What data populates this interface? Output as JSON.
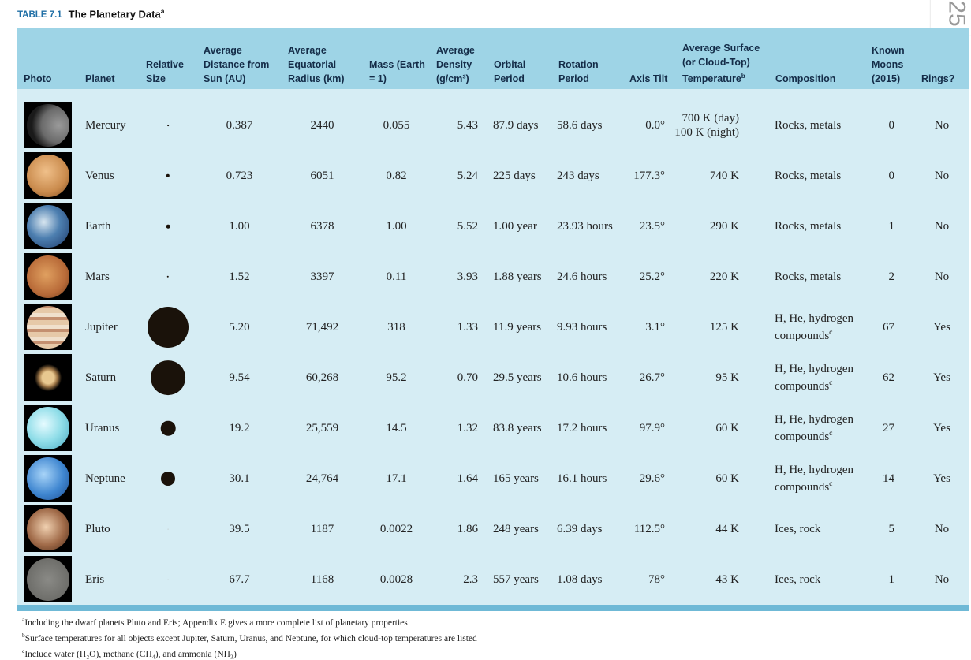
{
  "caption": {
    "label": "TABLE 7.1",
    "title": "The Planetary Data",
    "note": "a"
  },
  "page_number": "25",
  "table": {
    "headers": [
      "Photo",
      "Planet",
      "Relative Size",
      "Average Distance from Sun (AU)",
      "Average Equatorial Radius (km)",
      "Mass (Earth = 1)",
      "Average Density (g/cm³)",
      "Orbital Period",
      "Rotation Period",
      "Axis Tilt",
      {
        "text": "Average Surface (or Cloud-Top) Temperature",
        "note": "b"
      },
      "Composition",
      "Known Moons (2015)",
      "Rings?"
    ],
    "rows": [
      [
        "Mercury",
        "0.387",
        "2440",
        "0.055",
        "5.43",
        "87.9 days",
        "58.6 days",
        "0.0°",
        "700 K (day)\n100 K (night)",
        "Rocks, metals",
        "0",
        "No"
      ],
      [
        "Venus",
        "0.723",
        "6051",
        "0.82",
        "5.24",
        "225 days",
        "243 days",
        "177.3°",
        "740 K",
        "Rocks, metals",
        "0",
        "No"
      ],
      [
        "Earth",
        "1.00",
        "6378",
        "1.00",
        "5.52",
        "1.00 year",
        "23.93 hours",
        "23.5°",
        "290 K",
        "Rocks, metals",
        "1",
        "No"
      ],
      [
        "Mars",
        "1.52",
        "3397",
        "0.11",
        "3.93",
        "1.88 years",
        "24.6 hours",
        "25.2°",
        "220 K",
        "Rocks, metals",
        "2",
        "No"
      ],
      [
        "Jupiter",
        "5.20",
        "71,492",
        "318",
        "1.33",
        "11.9 years",
        "9.93 hours",
        "3.1°",
        "125 K",
        {
          "text": "H, He, hydrogen compounds",
          "note": "c"
        },
        "67",
        "Yes"
      ],
      [
        "Saturn",
        "9.54",
        "60,268",
        "95.2",
        "0.70",
        "29.5 years",
        "10.6 hours",
        "26.7°",
        "95 K",
        {
          "text": "H, He, hydrogen compounds",
          "note": "c"
        },
        "62",
        "Yes"
      ],
      [
        "Uranus",
        "19.2",
        "25,559",
        "14.5",
        "1.32",
        "83.8 years",
        "17.2 hours",
        "97.9°",
        "60 K",
        {
          "text": "H, He, hydrogen compounds",
          "note": "c"
        },
        "27",
        "Yes"
      ],
      [
        "Neptune",
        "30.1",
        "24,764",
        "17.1",
        "1.64",
        "165 years",
        "16.1 hours",
        "29.6°",
        "60 K",
        {
          "text": "H, He, hydrogen compounds",
          "note": "c"
        },
        "14",
        "Yes"
      ],
      [
        "Pluto",
        "39.5",
        "1187",
        "0.0022",
        "1.86",
        "248 years",
        "6.39 days",
        "112.5°",
        "44 K",
        "Ices, rock",
        "5",
        "No"
      ],
      [
        "Eris",
        "67.7",
        "1168",
        "0.0028",
        "2.3",
        "557 years",
        "1.08 days",
        "78°",
        "43 K",
        "Ices, rock",
        "1",
        "No"
      ]
    ]
  },
  "footnotes": [
    {
      "mark": "a",
      "text": "Including the dwarf planets Pluto and Eris; Appendix E gives a more complete list of planetary properties"
    },
    {
      "mark": "b",
      "text": "Surface temperatures for all objects except Jupiter, Saturn, Uranus, and Neptune, for which cloud-top temperatures are listed"
    },
    {
      "mark": "c",
      "text": "Include water (H₂O), methane (CH₄), and ammonia (NH₃)"
    }
  ]
}
